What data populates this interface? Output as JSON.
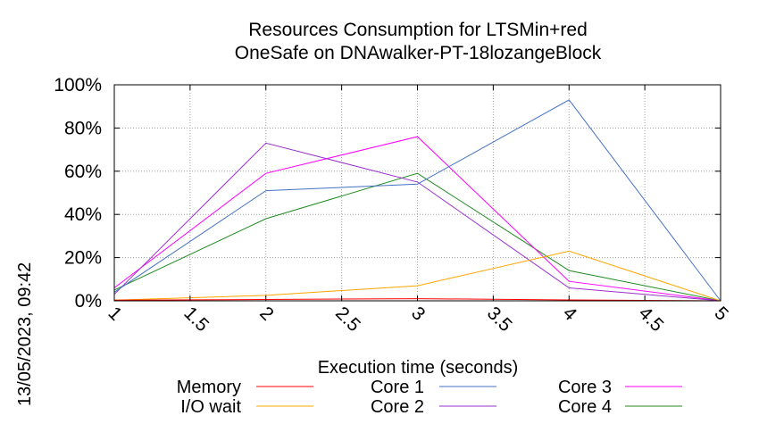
{
  "chart_data": {
    "type": "line",
    "title_line1": "Resources Consumption for LTSMin+red",
    "title_line2": "OneSafe on DNAwalker-PT-18lozangeBlock",
    "xlabel": "Execution time (seconds)",
    "ylabel": "",
    "xlim": [
      1,
      5
    ],
    "ylim": [
      0,
      100
    ],
    "x_ticks": [
      "1",
      "1.5",
      "2",
      "2.5",
      "3",
      "3.5",
      "4",
      "4.5",
      "5"
    ],
    "y_ticks": [
      "0%",
      "20%",
      "40%",
      "60%",
      "80%",
      "100%"
    ],
    "grid": true,
    "legend_position": "bottom",
    "timestamp": "13/05/2023, 09:42",
    "series": [
      {
        "name": "Memory",
        "color": "#ff0000",
        "x": [
          1,
          2,
          3,
          4,
          5
        ],
        "y": [
          0.3,
          0.6,
          1.0,
          0.4,
          0
        ]
      },
      {
        "name": "I/O wait",
        "color": "#ffa500",
        "x": [
          1,
          2,
          3,
          4,
          5
        ],
        "y": [
          0.3,
          2.5,
          7,
          23,
          0
        ]
      },
      {
        "name": "Core 1",
        "color": "#4472c4",
        "x": [
          1,
          2,
          3,
          4,
          5
        ],
        "y": [
          4,
          51,
          54,
          93,
          0
        ]
      },
      {
        "name": "Core 2",
        "color": "#9932cc",
        "x": [
          1,
          2,
          3,
          4,
          5
        ],
        "y": [
          3,
          73,
          55,
          6,
          0
        ]
      },
      {
        "name": "Core 3",
        "color": "#ff00ff",
        "x": [
          1,
          2,
          3,
          4,
          5
        ],
        "y": [
          6,
          59,
          76,
          9,
          0
        ]
      },
      {
        "name": "Core 4",
        "color": "#228b22",
        "x": [
          1,
          2,
          3,
          4,
          5
        ],
        "y": [
          5,
          38,
          59,
          14,
          0
        ]
      }
    ]
  }
}
